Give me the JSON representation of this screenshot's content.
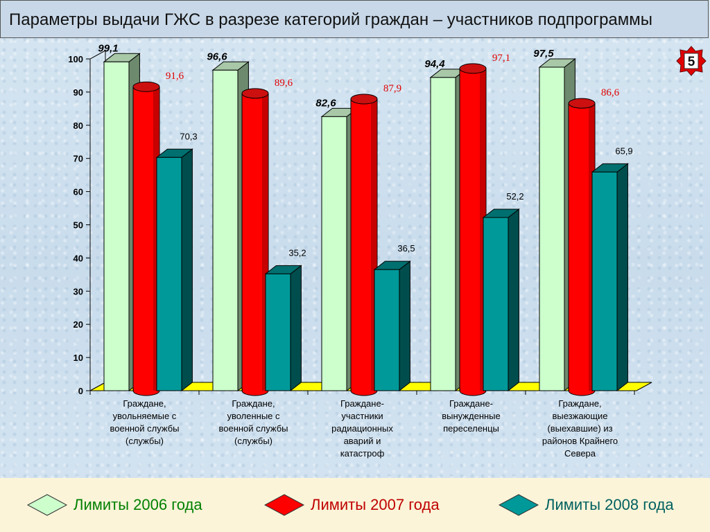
{
  "title": "Параметры выдачи ГЖС в разрезе категорий граждан – участников подпрограммы",
  "badge": "5",
  "colors": {
    "s2006_front": "#ccffcc",
    "s2006_side": "#6e8a6e",
    "s2006_top": "#a8c8a8",
    "s2007_front": "#ff0000",
    "s2007_side": "#990000",
    "s2007_top": "#cc1010",
    "s2008_front": "#009999",
    "s2008_side": "#004d4d",
    "s2008_top": "#006f6f",
    "floor": "#ffff00",
    "badge": "#e00000"
  },
  "chart_data": {
    "type": "bar",
    "categories": [
      "Граждане, увольняемые с военной службы (службы)",
      "Граждане, уволенные с военной службы (службы)",
      "Граждане-участники радиационных аварий и катастроф",
      "Граждане-вынужденные переселенцы",
      "Граждане, выезжающие (выехавшие) из районов Крайнего Севера"
    ],
    "category_lines": [
      [
        "Граждане,",
        "увольняемые с",
        "военной службы",
        "(службы)"
      ],
      [
        "Граждане,",
        "уволенные с",
        "военной службы",
        "(службы)"
      ],
      [
        "Граждане-",
        "участники",
        "радиационных",
        "аварий и",
        "катастроф"
      ],
      [
        "Граждане-",
        "вынужденные",
        "переселенцы"
      ],
      [
        "Граждане,",
        "выезжающие",
        "(выехавшие) из",
        "районов Крайнего",
        "Севера"
      ]
    ],
    "series": [
      {
        "name": "Лимиты 2006 года",
        "values": [
          99.1,
          96.6,
          82.6,
          94.4,
          97.5
        ],
        "labels": [
          "99,1",
          "96,6",
          "82,6",
          "94,4",
          "97,5"
        ]
      },
      {
        "name": "Лимиты 2007 года",
        "values": [
          91.6,
          89.6,
          87.9,
          97.1,
          86.6
        ],
        "labels": [
          "91,6",
          "89,6",
          "87,9",
          "97,1",
          "86,6"
        ]
      },
      {
        "name": "Лимиты 2008 года",
        "values": [
          70.3,
          35.2,
          36.5,
          52.2,
          65.9
        ],
        "labels": [
          "70,3",
          "35,2",
          "36,5",
          "52,2",
          "65,9"
        ]
      }
    ],
    "yticks": [
      "0",
      "10",
      "20",
      "30",
      "40",
      "50",
      "60",
      "70",
      "80",
      "90",
      "100"
    ],
    "ylim": [
      0,
      100
    ],
    "legend_position": "bottom"
  }
}
